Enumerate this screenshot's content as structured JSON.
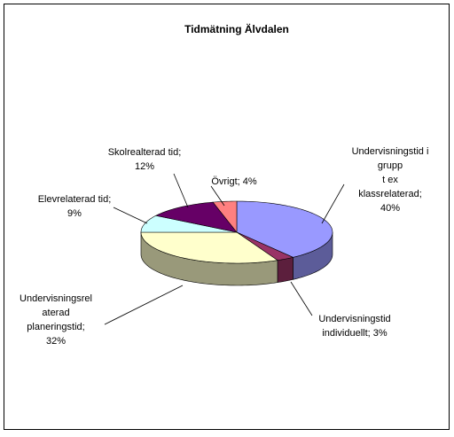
{
  "chart_data": {
    "type": "pie3d",
    "title": "Tidmätning Älvdalen",
    "values": [
      40,
      3,
      32,
      9,
      12,
      4
    ],
    "labels": [
      [
        "Undervisningstid i",
        "grupp",
        "t ex",
        "klassrelaterad;",
        "40%"
      ],
      [
        "Undervisningstid",
        "individuellt; 3%"
      ],
      [
        "Undervisningsrel",
        "aterad",
        "planeringstid;",
        "32%"
      ],
      [
        "Elevrelaterad tid;",
        "9%"
      ],
      [
        "Skolrealterad tid;",
        "12%"
      ],
      [
        "Övrigt; 4%"
      ]
    ],
    "colors": [
      "#9999ff",
      "#993366",
      "#ffffcc",
      "#ccffff",
      "#660066",
      "#ff8080"
    ]
  }
}
